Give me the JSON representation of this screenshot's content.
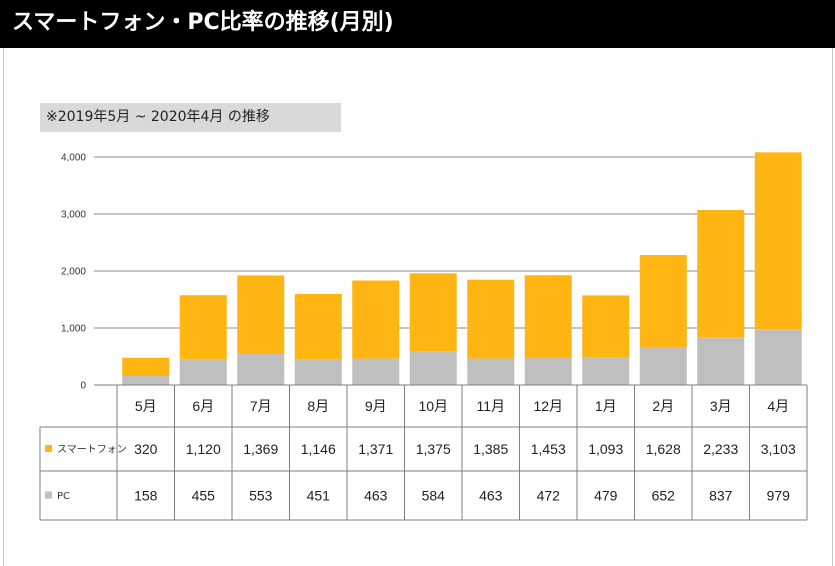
{
  "page": {
    "title": "スマートフォン・PC比率の推移(月別)"
  },
  "chart_data": {
    "type": "bar",
    "stacked": true,
    "subtitle": "※2019年5月 ~ 2020年4月 の推移",
    "categories": [
      "5月",
      "6月",
      "7月",
      "8月",
      "9月",
      "10月",
      "11月",
      "12月",
      "1月",
      "2月",
      "3月",
      "4月"
    ],
    "series": [
      {
        "name": "スマートフォン",
        "color": "#ffb612",
        "values": [
          320,
          1120,
          1369,
          1146,
          1371,
          1375,
          1385,
          1453,
          1093,
          1628,
          2233,
          3103
        ],
        "labels": [
          "320",
          "1,120",
          "1,369",
          "1,146",
          "1,371",
          "1,375",
          "1,385",
          "1,453",
          "1,093",
          "1,628",
          "2,233",
          "3,103"
        ]
      },
      {
        "name": "PC",
        "color": "#bfbfbf",
        "values": [
          158,
          455,
          553,
          451,
          463,
          584,
          463,
          472,
          479,
          652,
          837,
          979
        ],
        "labels": [
          "158",
          "455",
          "553",
          "451",
          "463",
          "584",
          "463",
          "472",
          "479",
          "652",
          "837",
          "979"
        ]
      }
    ],
    "yticks": [
      0,
      1000,
      2000,
      3000,
      4000
    ],
    "ytick_labels": [
      "0",
      "1,000",
      "2,000",
      "3,000",
      "4,000"
    ],
    "ylim": [
      0,
      4000
    ],
    "grid": true,
    "legend": "data-table"
  }
}
